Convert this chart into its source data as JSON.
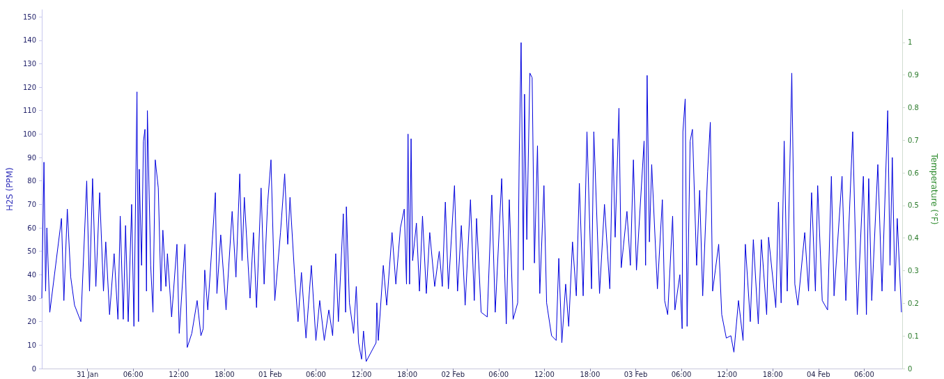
{
  "chart_data": {
    "type": "line",
    "ylabel": "H2S (PPM)",
    "y2label": "Temperature (°F)",
    "xlim": [
      "--01-30T18:00",
      "--02-04T11:00"
    ],
    "xticks": [
      {
        "value": "--01-31T00:00",
        "label": "31 Jan"
      },
      {
        "value": "--01-31T06:00",
        "label": "06:00"
      },
      {
        "value": "--01-31T12:00",
        "label": "12:00"
      },
      {
        "value": "--01-31T18:00",
        "label": "18:00"
      },
      {
        "value": "--02-01T00:00",
        "label": "01 Feb"
      },
      {
        "value": "--02-01T06:00",
        "label": "06:00"
      },
      {
        "value": "--02-01T12:00",
        "label": "12:00"
      },
      {
        "value": "--02-01T18:00",
        "label": "18:00"
      },
      {
        "value": "--02-02T00:00",
        "label": "02 Feb"
      },
      {
        "value": "--02-02T06:00",
        "label": "06:00"
      },
      {
        "value": "--02-02T12:00",
        "label": "12:00"
      },
      {
        "value": "--02-02T18:00",
        "label": "18:00"
      },
      {
        "value": "--02-03T00:00",
        "label": "03 Feb"
      },
      {
        "value": "--02-03T06:00",
        "label": "06:00"
      },
      {
        "value": "--02-03T12:00",
        "label": "12:00"
      },
      {
        "value": "--02-03T18:00",
        "label": "18:00"
      },
      {
        "value": "--02-04T00:00",
        "label": "04 Feb"
      },
      {
        "value": "--02-04T06:00",
        "label": "06:00"
      }
    ],
    "ylim": [
      0,
      153
    ],
    "yticks": [
      0,
      10,
      20,
      30,
      40,
      50,
      60,
      70,
      80,
      90,
      100,
      110,
      120,
      130,
      140,
      150
    ],
    "y2lim": [
      0,
      1.1
    ],
    "y2ticks": [
      0,
      0.1,
      0.2,
      0.3,
      0.4,
      0.5,
      0.6,
      0.7,
      0.8,
      0.9,
      1
    ],
    "grid": false,
    "marker": "none",
    "line_style": "solid",
    "series": [
      {
        "color": "#0000dd",
        "x": [
          "--01-30T18:00",
          "--01-30T18:17",
          "--01-30T18:30",
          "--01-30T18:40",
          "--01-30T19:03",
          "--01-30T20:35",
          "--01-30T20:54",
          "--01-30T21:21",
          "--01-30T21:48",
          "--01-30T22:18",
          "--01-30T23:08",
          "--01-30T23:54",
          "--01-31T00:16",
          "--01-31T00:40",
          "--01-31T01:06",
          "--01-31T01:36",
          "--01-31T02:06",
          "--01-31T02:24",
          "--01-31T02:54",
          "--01-31T03:30",
          "--01-31T04:00",
          "--01-31T04:18",
          "--01-31T04:42",
          "--01-31T05:00",
          "--01-31T05:21",
          "--01-31T05:48",
          "--01-31T06:06",
          "--01-31T06:30",
          "--01-31T06:42",
          "--01-31T06:48",
          "--01-31T07:06",
          "--01-31T07:21",
          "--01-31T07:33",
          "--01-31T07:45",
          "--01-31T07:52",
          "--01-31T08:18",
          "--01-31T08:36",
          "--01-31T08:54",
          "--01-31T09:18",
          "--01-31T09:39",
          "--01-31T09:54",
          "--01-31T10:18",
          "--01-31T10:30",
          "--01-31T11:03",
          "--01-31T11:45",
          "--01-31T12:03",
          "--01-31T12:48",
          "--01-31T13:06",
          "--01-31T13:42",
          "--01-31T14:24",
          "--01-31T14:54",
          "--01-31T15:12",
          "--01-31T15:24",
          "--01-31T15:48",
          "--01-31T16:24",
          "--01-31T16:48",
          "--01-31T17:00",
          "--01-31T17:30",
          "--01-31T18:12",
          "--01-31T19:00",
          "--01-31T19:30",
          "--01-31T20:00",
          "--01-31T20:18",
          "--01-31T20:36",
          "--01-31T21:21",
          "--01-31T21:48",
          "--01-31T22:12",
          "--01-31T22:48",
          "--01-31T23:12",
          "--01-31T23:39",
          "--02-01T00:06",
          "--02-01T00:36",
          "--02-01T01:21",
          "--02-01T01:54",
          "--02-01T02:18",
          "--02-01T02:36",
          "--02-01T03:12",
          "--02-01T03:39",
          "--02-01T04:06",
          "--02-01T04:42",
          "--02-01T05:24",
          "--02-01T06:00",
          "--02-01T06:30",
          "--02-01T07:06",
          "--02-01T07:42",
          "--02-01T08:12",
          "--02-01T08:36",
          "--02-01T08:57",
          "--02-01T09:36",
          "--02-01T09:54",
          "--02-01T10:00",
          "--02-01T10:24",
          "--02-01T10:57",
          "--02-01T11:18",
          "--02-01T11:36",
          "--02-01T12:00",
          "--02-01T12:15",
          "--02-01T12:36",
          "--02-01T13:54",
          "--02-01T14:00",
          "--02-01T14:12",
          "--02-01T14:51",
          "--02-01T15:18",
          "--02-01T16:00",
          "--02-01T16:30",
          "--02-01T17:06",
          "--02-01T17:36",
          "--02-01T17:54",
          "--02-01T18:06",
          "--02-01T18:18",
          "--02-01T18:30",
          "--02-01T18:42",
          "--02-01T19:12",
          "--02-01T19:36",
          "--02-01T20:00",
          "--02-01T20:30",
          "--02-01T20:57",
          "--02-01T21:36",
          "--02-01T22:12",
          "--02-01T22:36",
          "--02-01T23:00",
          "--02-01T23:24",
          "--02-02T00:12",
          "--02-02T00:36",
          "--02-02T01:06",
          "--02-02T01:36",
          "--02-02T02:18",
          "--02-02T02:48",
          "--02-02T03:06",
          "--02-02T03:42",
          "--02-02T04:30",
          "--02-02T05:06",
          "--02-02T05:33",
          "--02-02T06:24",
          "--02-02T07:00",
          "--02-02T07:24",
          "--02-02T07:54",
          "--02-02T08:30",
          "--02-02T08:42",
          "--02-02T08:57",
          "--02-02T09:15",
          "--02-02T09:24",
          "--02-02T09:42",
          "--02-02T10:06",
          "--02-02T10:24",
          "--02-02T10:42",
          "--02-02T11:06",
          "--02-02T11:24",
          "--02-02T11:57",
          "--02-02T12:18",
          "--02-02T12:57",
          "--02-02T13:33",
          "--02-02T13:54",
          "--02-02T14:18",
          "--02-02T14:48",
          "--02-02T15:12",
          "--02-02T15:42",
          "--02-02T16:12",
          "--02-02T16:36",
          "--02-02T17:06",
          "--02-02T17:36",
          "--02-02T18:12",
          "--02-02T18:30",
          "--02-02T19:15",
          "--02-02T19:54",
          "--02-02T20:36",
          "--02-02T21:00",
          "--02-02T21:18",
          "--02-02T21:48",
          "--02-02T22:06",
          "--02-02T22:51",
          "--02-02T23:18",
          "--02-02T23:42",
          "--02-03T00:06",
          "--02-03T01:06",
          "--02-03T01:18",
          "--02-03T01:30",
          "--02-03T01:48",
          "--02-03T02:06",
          "--02-03T02:51",
          "--02-03T03:30",
          "--02-03T03:48",
          "--02-03T04:12",
          "--02-03T04:51",
          "--02-03T05:09",
          "--02-03T05:48",
          "--02-03T06:06",
          "--02-03T06:12",
          "--02-03T06:30",
          "--02-03T06:45",
          "--02-03T07:09",
          "--02-03T07:27",
          "--02-03T08:00",
          "--02-03T08:24",
          "--02-03T08:48",
          "--02-03T09:27",
          "--02-03T09:48",
          "--02-03T10:06",
          "--02-03T10:54",
          "--02-03T11:18",
          "--02-03T11:54",
          "--02-03T12:30",
          "--02-03T12:54",
          "--02-03T13:30",
          "--02-03T14:06",
          "--02-03T14:24",
          "--02-03T15:03",
          "--02-03T15:27",
          "--02-03T16:06",
          "--02-03T16:30",
          "--02-03T17:12",
          "--02-03T17:27",
          "--02-03T18:24",
          "--02-03T18:45",
          "--02-03T19:06",
          "--02-03T19:30",
          "--02-03T19:54",
          "--02-03T20:30",
          "--02-03T20:54",
          "--02-03T21:18",
          "--02-03T22:12",
          "--02-03T22:42",
          "--02-03T23:06",
          "--02-03T23:36",
          "--02-03T23:54",
          "--02-04T00:30",
          "--02-04T01:12",
          "--02-04T01:42",
          "--02-04T02:03",
          "--02-04T03:06",
          "--02-04T03:36",
          "--02-04T04:30",
          "--02-04T05:06",
          "--02-04T05:54",
          "--02-04T06:18",
          "--02-04T06:36",
          "--02-04T07:00",
          "--02-04T07:48",
          "--02-04T08:21",
          "--02-04T09:06",
          "--02-04T09:24",
          "--02-04T09:42",
          "--02-04T10:03",
          "--02-04T10:21",
          "--02-04T10:54"
        ],
        "values": [
          30,
          88,
          33,
          60,
          24,
          64,
          29,
          68,
          39,
          27,
          20,
          80,
          33,
          81,
          35,
          75,
          33,
          54,
          23,
          49,
          21,
          65,
          21,
          61,
          20,
          70,
          18,
          118,
          20,
          85,
          44,
          97,
          102,
          33,
          110,
          44,
          24,
          89,
          77,
          33,
          59,
          35,
          49,
          22,
          53,
          15,
          53,
          9,
          15,
          29,
          14,
          17,
          42,
          25,
          55,
          75,
          32,
          57,
          25,
          67,
          39,
          83,
          46,
          73,
          30,
          58,
          26,
          77,
          36,
          70,
          89,
          29,
          58,
          83,
          53,
          73,
          40,
          20,
          41,
          13,
          44,
          12,
          29,
          12,
          25,
          14,
          49,
          20,
          66,
          24,
          69,
          28,
          15,
          35,
          11,
          4,
          16,
          3,
          11,
          28,
          12,
          44,
          27,
          58,
          36,
          60,
          68,
          36,
          100,
          36,
          98,
          46,
          62,
          33,
          65,
          32,
          58,
          35,
          50,
          35,
          71,
          34,
          78,
          33,
          61,
          27,
          72,
          29,
          64,
          24,
          22,
          74,
          24,
          81,
          19,
          72,
          21,
          28,
          90,
          139,
          42,
          117,
          55,
          126,
          124,
          45,
          95,
          32,
          78,
          28,
          14,
          12,
          47,
          11,
          36,
          18,
          54,
          31,
          79,
          31,
          101,
          34,
          101,
          32,
          70,
          34,
          98,
          56,
          111,
          43,
          67,
          44,
          89,
          42,
          97,
          44,
          125,
          54,
          87,
          34,
          72,
          29,
          23,
          65,
          25,
          40,
          17,
          101,
          115,
          18,
          97,
          102,
          44,
          76,
          31,
          84,
          105,
          33,
          53,
          23,
          13,
          14,
          7,
          29,
          12,
          53,
          20,
          55,
          19,
          55,
          23,
          56,
          26,
          71,
          28,
          97,
          33,
          126,
          36,
          27,
          58,
          33,
          75,
          33,
          78,
          29,
          25,
          82,
          31,
          82,
          29,
          101,
          23,
          82,
          23,
          81,
          29,
          87,
          33,
          110,
          44,
          90,
          33,
          64,
          24
        ]
      }
    ]
  }
}
